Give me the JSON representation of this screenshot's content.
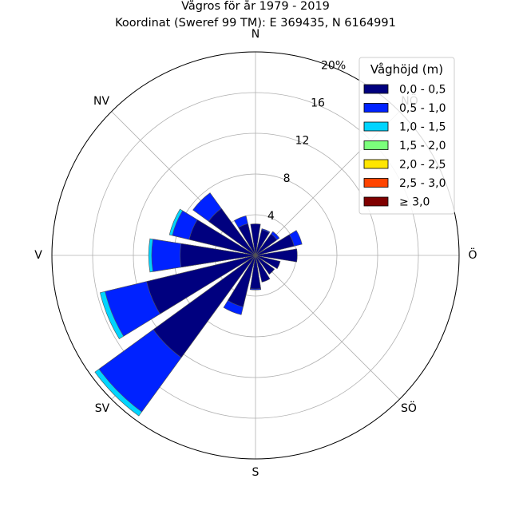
{
  "chart_data": {
    "type": "windrose",
    "title": "Vågros för år 1979 - 2019",
    "subtitle": "Koordinat (Sweref 99 TM): E 369435, N 6164991",
    "directions": [
      "N",
      "NNÖ",
      "NÖ",
      "ÖNÖ",
      "Ö",
      "ÖSÖ",
      "SÖ",
      "SSÖ",
      "S",
      "SSV",
      "SV",
      "VSV",
      "V",
      "VNV",
      "NV",
      "NNV"
    ],
    "compass_labels": {
      "N": "N",
      "NE": "NÖ",
      "E": "Ö",
      "SE": "SÖ",
      "S": "S",
      "SW": "SV",
      "W": "V",
      "NW": "NV"
    },
    "radial_ticks": [
      "4",
      "8",
      "12",
      "16",
      "20%"
    ],
    "radial_tick_values": [
      4,
      8,
      12,
      16,
      20
    ],
    "rmax": 20,
    "legend_title": "Våghöjd (m)",
    "legend_placement": "top-right",
    "bins": [
      {
        "label": "0,0 - 0,5",
        "color": "#00007f"
      },
      {
        "label": "0,5 - 1,0",
        "color": "#0022ff"
      },
      {
        "label": "1,0 - 1,5",
        "color": "#00d4ff"
      },
      {
        "label": "1,5 - 2,0",
        "color": "#7bff7b"
      },
      {
        "label": "2,0 - 2,5",
        "color": "#ffe600"
      },
      {
        "label": "2,5 - 3,0",
        "color": "#ff4400"
      },
      {
        "label": "≥ 3,0",
        "color": "#7f0000"
      }
    ],
    "cumulative_values": [
      [
        3.1,
        3.1,
        3.1,
        3.1,
        3.1,
        3.1,
        3.1
      ],
      [
        2.6,
        2.7,
        2.7,
        2.7,
        2.7,
        2.7,
        2.7
      ],
      [
        2.6,
        2.9,
        2.9,
        2.9,
        2.9,
        2.9,
        2.9
      ],
      [
        3.9,
        4.7,
        4.7,
        4.7,
        4.7,
        4.7,
        4.7
      ],
      [
        4.1,
        4.1,
        4.1,
        4.1,
        4.1,
        4.1,
        4.1
      ],
      [
        2.5,
        2.5,
        2.5,
        2.5,
        2.5,
        2.5,
        2.5
      ],
      [
        2.3,
        2.3,
        2.3,
        2.3,
        2.3,
        2.3,
        2.3
      ],
      [
        2.7,
        2.7,
        2.7,
        2.7,
        2.7,
        2.7,
        2.7
      ],
      [
        3.3,
        3.4,
        3.4,
        3.4,
        3.4,
        3.4,
        3.4
      ],
      [
        5.2,
        6.0,
        6.0,
        6.0,
        6.0,
        6.0,
        6.0
      ],
      [
        12.4,
        19.0,
        19.5,
        19.5,
        19.5,
        19.5,
        19.5
      ],
      [
        11.0,
        15.2,
        15.7,
        15.7,
        15.7,
        15.7,
        15.7
      ],
      [
        7.4,
        10.2,
        10.5,
        10.5,
        10.5,
        10.5,
        10.5
      ],
      [
        6.7,
        8.4,
        8.7,
        8.7,
        8.7,
        8.7,
        8.7
      ],
      [
        5.7,
        7.6,
        7.6,
        7.6,
        7.6,
        7.6,
        7.6
      ],
      [
        3.2,
        4.0,
        4.0,
        4.0,
        4.0,
        4.0,
        4.0
      ]
    ],
    "grid": true
  }
}
